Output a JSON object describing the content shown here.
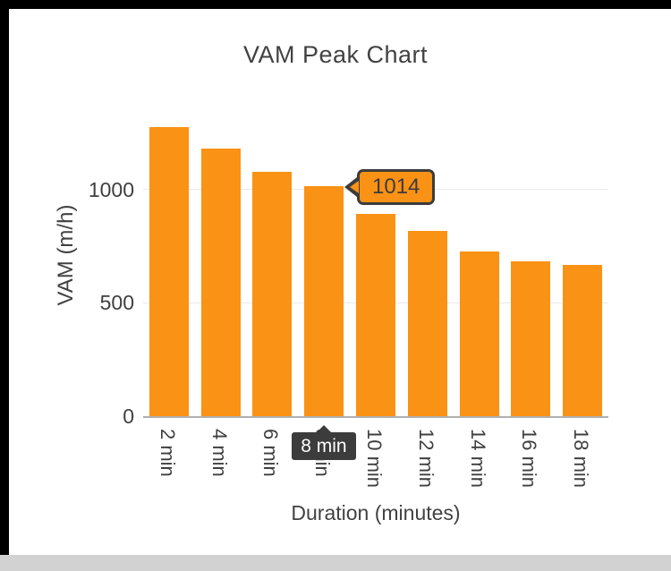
{
  "chart_data": {
    "type": "bar",
    "title": "VAM Peak Chart",
    "xlabel": "Duration (minutes)",
    "ylabel": "VAM (m/h)",
    "categories": [
      "2 min",
      "4 min",
      "6 min",
      "8 min",
      "10 min",
      "12 min",
      "14 min",
      "16 min",
      "18 min"
    ],
    "values": [
      1275,
      1180,
      1078,
      1014,
      893,
      818,
      728,
      683,
      668
    ],
    "ylim": [
      0,
      1320
    ],
    "yticks": [
      0,
      500,
      1000
    ],
    "grid": true,
    "legend": false,
    "bar_color": "#fa9215",
    "text_color": "#424242",
    "gridline_color": "#eaeaea",
    "axis_line_color": "#b0b0b0",
    "selected": {
      "index": 3,
      "category": "8 min",
      "value": 1014,
      "tooltip_label": "1014",
      "label_bg": "#3c3c3c"
    }
  }
}
